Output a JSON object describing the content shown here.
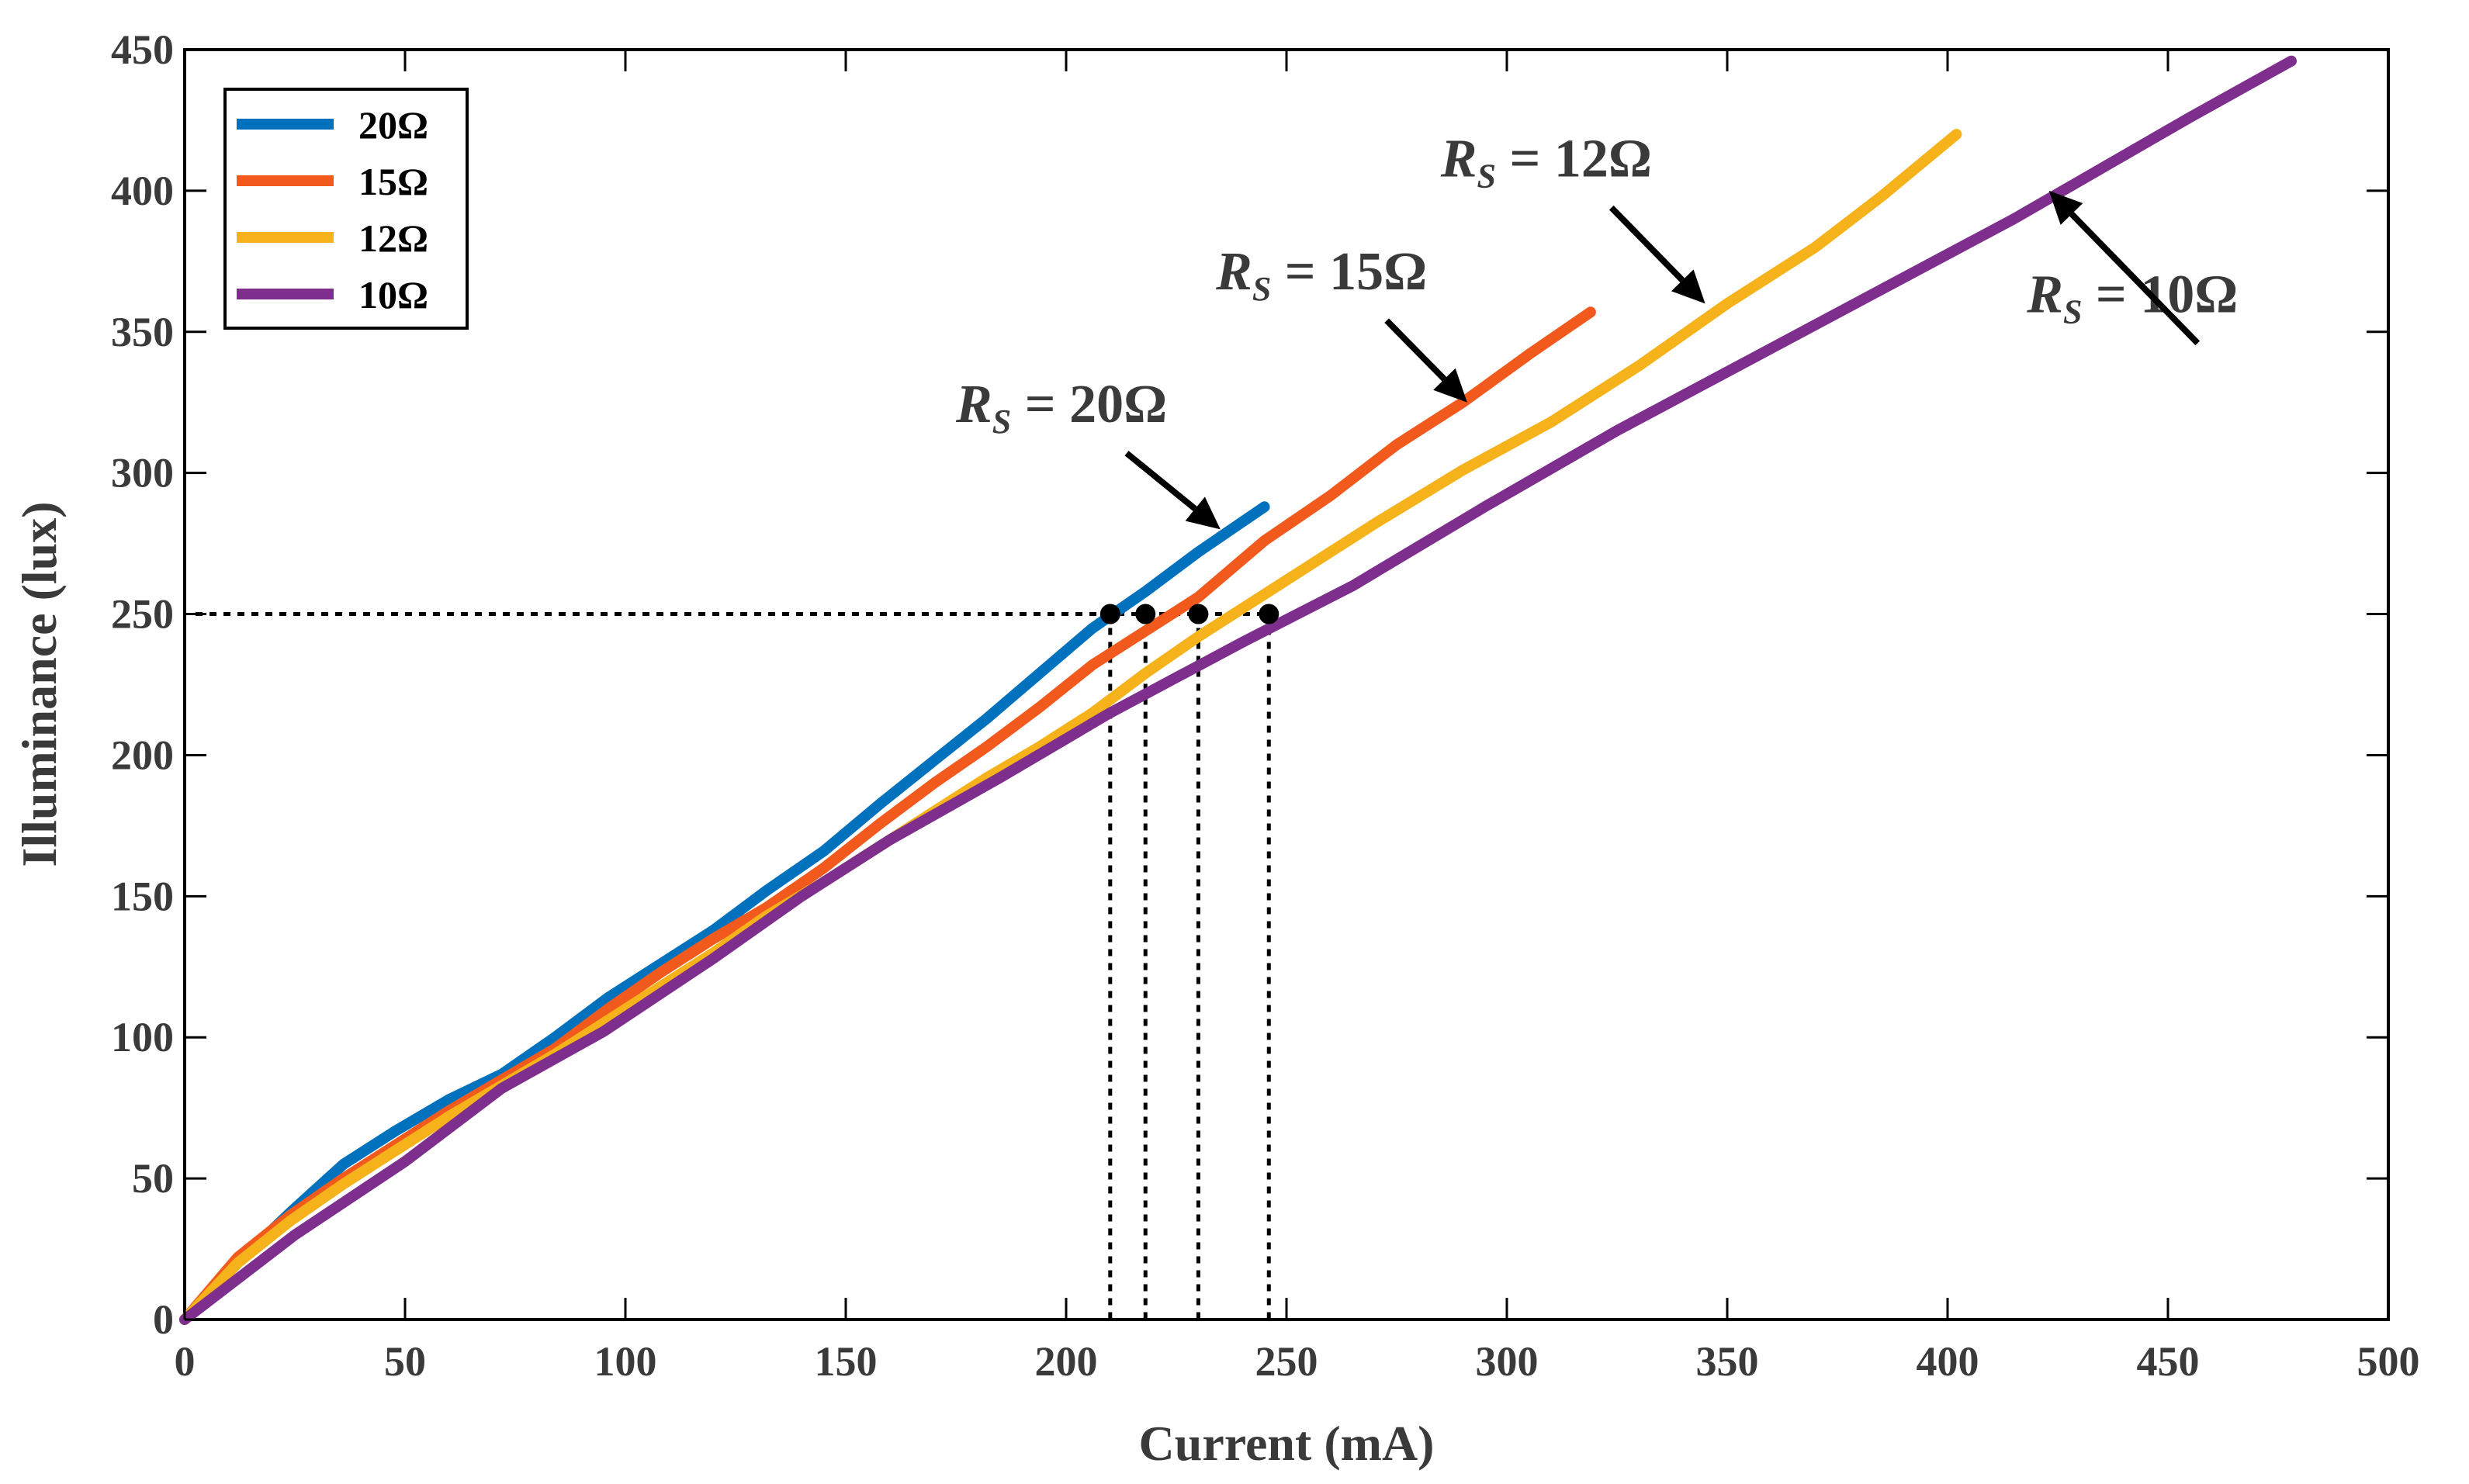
{
  "chart_data": {
    "type": "line",
    "title": "",
    "xlabel": "Current (mA)",
    "ylabel": "Illuminance (lux)",
    "xlim": [
      0,
      500
    ],
    "ylim": [
      0,
      450
    ],
    "xticks": [
      0,
      50,
      100,
      150,
      200,
      250,
      300,
      350,
      400,
      450,
      500
    ],
    "yticks": [
      0,
      50,
      100,
      150,
      200,
      250,
      300,
      350,
      400,
      450
    ],
    "grid": false,
    "legend_position": "top-left",
    "colors": {
      "20Ω": "#0072BD",
      "15Ω": "#F25A1D",
      "12Ω": "#F5B21A",
      "10Ω": "#7E2F8E"
    },
    "series": [
      {
        "name": "20Ω",
        "x": [
          0,
          12,
          24,
          36,
          48,
          60,
          72,
          84,
          96,
          108,
          120,
          132,
          145,
          158,
          170,
          182,
          194,
          206,
          218,
          230,
          245
        ],
        "y": [
          0,
          20,
          38,
          55,
          67,
          78,
          87,
          100,
          114,
          126,
          138,
          152,
          166,
          183,
          198,
          213,
          229,
          245,
          258,
          272,
          288
        ]
      },
      {
        "name": "15Ω",
        "x": [
          0,
          12,
          24,
          36,
          48,
          60,
          72,
          84,
          96,
          108,
          120,
          132,
          145,
          158,
          170,
          182,
          194,
          206,
          218,
          230,
          245,
          260,
          275,
          290,
          305,
          319
        ],
        "y": [
          0,
          22,
          37,
          50,
          62,
          74,
          85,
          96,
          110,
          123,
          135,
          146,
          160,
          176,
          190,
          203,
          217,
          232,
          244,
          256,
          276,
          292,
          310,
          325,
          342,
          357
        ]
      },
      {
        "name": "12Ω",
        "x": [
          0,
          12,
          24,
          36,
          48,
          60,
          72,
          84,
          96,
          108,
          120,
          132,
          145,
          158,
          170,
          182,
          194,
          206,
          218,
          230,
          250,
          270,
          290,
          310,
          330,
          350,
          370,
          385,
          402
        ],
        "y": [
          0,
          20,
          35,
          48,
          60,
          72,
          83,
          94,
          106,
          118,
          130,
          143,
          155,
          168,
          180,
          192,
          203,
          215,
          229,
          242,
          262,
          282,
          301,
          318,
          338,
          360,
          380,
          398,
          420
        ]
      },
      {
        "name": "10Ω",
        "x": [
          0,
          25,
          50,
          72,
          95,
          120,
          140,
          160,
          185,
          210,
          240,
          265,
          295,
          325,
          355,
          385,
          415,
          455,
          478
        ],
        "y": [
          0,
          30,
          56,
          82,
          102,
          128,
          150,
          170,
          192,
          215,
          240,
          260,
          288,
          315,
          340,
          365,
          390,
          426,
          446
        ]
      }
    ],
    "reference_level": 250,
    "intersections": [
      {
        "x": 210,
        "y": 250
      },
      {
        "x": 218,
        "y": 250
      },
      {
        "x": 230,
        "y": 250
      },
      {
        "x": 246,
        "y": 250
      }
    ],
    "annotations": [
      {
        "prefix": "R",
        "sub": "S",
        "text": " = 20Ω",
        "label_x": 175,
        "label_y": 318,
        "arrow_x": 235,
        "arrow_y": 280
      },
      {
        "prefix": "R",
        "sub": "S",
        "text": " = 15Ω",
        "label_x": 234,
        "label_y": 365,
        "arrow_x": 291,
        "arrow_y": 325
      },
      {
        "prefix": "R",
        "sub": "S",
        "text": " = 12Ω",
        "label_x": 285,
        "label_y": 405,
        "arrow_x": 345,
        "arrow_y": 360
      },
      {
        "prefix": "R",
        "sub": "S",
        "text": " = 10Ω",
        "label_x": 418,
        "label_y": 357,
        "arrow_x": 423,
        "arrow_y": 400
      }
    ]
  }
}
